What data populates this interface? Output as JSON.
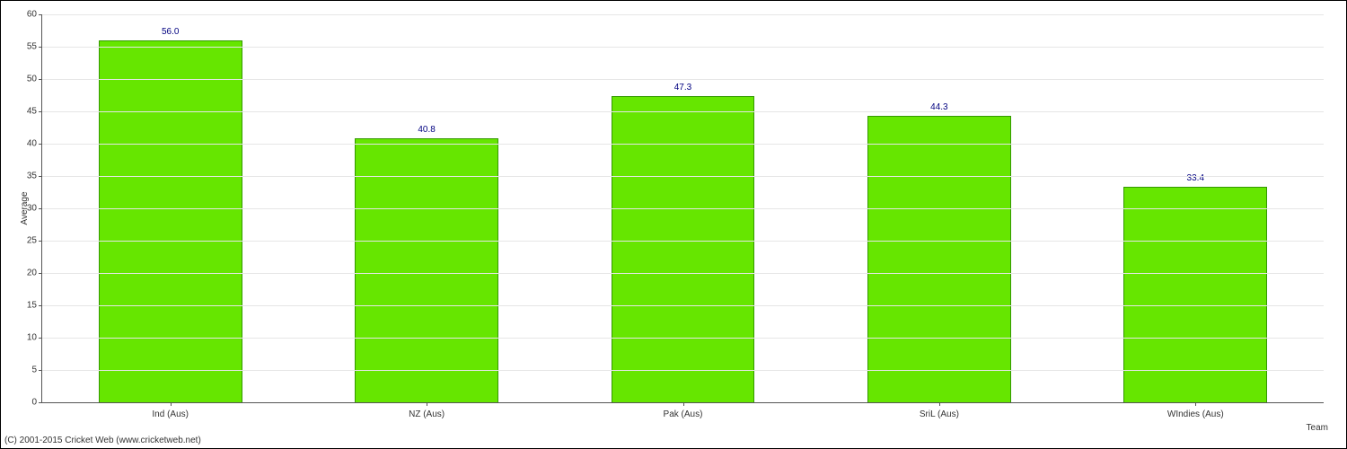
{
  "chart": {
    "type": "bar",
    "ylabel": "Average",
    "xlabel": "Team",
    "ylim": [
      0,
      60
    ],
    "ytick_step": 5,
    "categories": [
      "Ind (Aus)",
      "NZ (Aus)",
      "Pak (Aus)",
      "SriL (Aus)",
      "WIndies (Aus)"
    ],
    "values": [
      56.0,
      40.8,
      47.3,
      44.3,
      33.4
    ],
    "value_labels": [
      "56.0",
      "40.8",
      "47.3",
      "44.3",
      "33.4"
    ],
    "bar_color": "#66e600",
    "bar_border_color": "#339900",
    "value_label_color": "#000080",
    "grid_color": "#e6e6e6",
    "background_color": "#ffffff",
    "axis_color": "#555555",
    "label_fontsize": 10,
    "bar_width_ratio": 0.56
  },
  "footer": {
    "copyright": "(C) 2001-2015 Cricket Web (www.cricketweb.net)"
  }
}
